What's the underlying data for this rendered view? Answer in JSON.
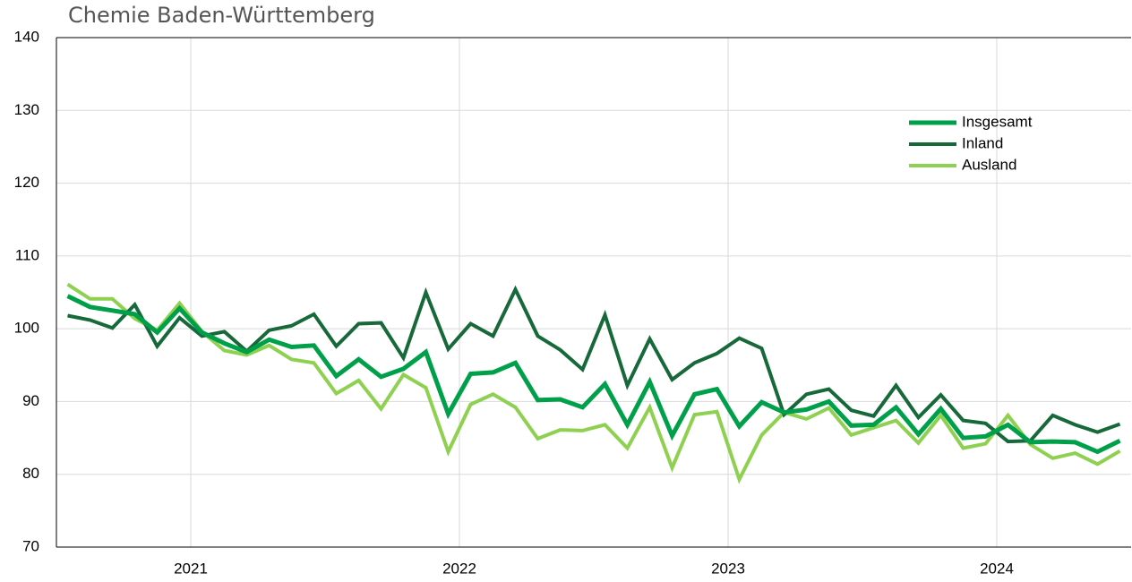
{
  "chart_data": {
    "type": "line",
    "title": "Chemie Baden-Württemberg",
    "categories": [
      null,
      null,
      null,
      null,
      null,
      null,
      "2021",
      null,
      null,
      null,
      null,
      null,
      null,
      null,
      null,
      null,
      null,
      null,
      "2022",
      null,
      null,
      null,
      null,
      null,
      null,
      null,
      null,
      null,
      null,
      null,
      "2023",
      null,
      null,
      null,
      null,
      null,
      null,
      null,
      null,
      null,
      null,
      null,
      "2024",
      null,
      null,
      null,
      null,
      null
    ],
    "series": [
      {
        "name": "Insgesamt",
        "color": "#00a04a",
        "values": [
          104.5,
          103,
          102.5,
          102,
          99.5,
          102.8,
          99.5,
          98,
          96.8,
          98.5,
          97.5,
          97.7,
          93.5,
          95.8,
          93.4,
          94.5,
          96.8,
          88.3,
          93.8,
          94,
          95.3,
          90.2,
          90.3,
          89.2,
          92.4,
          86.8,
          92.7,
          85.3,
          91,
          91.7,
          86.6,
          89.9,
          88.5,
          88.9,
          90,
          86.7,
          86.8,
          89.2,
          85.5,
          89,
          85,
          85.2,
          86.8,
          84.4,
          84.5,
          84.4,
          83.1,
          84.6
        ]
      },
      {
        "name": "Inland",
        "color": "#17693a",
        "values": [
          101.8,
          101.2,
          100.1,
          103.3,
          97.6,
          101.5,
          99,
          99.6,
          96.9,
          99.8,
          100.4,
          102,
          97.6,
          100.7,
          100.8,
          96,
          105,
          97.2,
          100.7,
          99,
          105.4,
          99,
          97.1,
          94.4,
          101.9,
          92.2,
          98.6,
          93,
          95.3,
          96.6,
          98.7,
          97.3,
          88.2,
          91,
          91.7,
          88.8,
          88,
          92.2,
          87.8,
          90.9,
          87.4,
          87,
          84.5,
          84.6,
          88.1,
          86.8,
          85.8,
          86.9
        ]
      },
      {
        "name": "Ausland",
        "color": "#8ed150",
        "values": [
          106.1,
          104.1,
          104.1,
          101.4,
          99.8,
          103.5,
          99.6,
          97,
          96.4,
          97.7,
          95.8,
          95.3,
          91.1,
          92.9,
          89,
          93.7,
          91.9,
          83.1,
          89.6,
          91,
          89.2,
          84.9,
          86.1,
          86,
          86.8,
          83.6,
          89.2,
          80.9,
          88.2,
          88.6,
          79.3,
          85.4,
          88.5,
          87.6,
          89.1,
          85.4,
          86.4,
          87.4,
          84.3,
          88.1,
          83.6,
          84.2,
          88.1,
          84.1,
          82.2,
          82.9,
          81.4,
          83.2
        ]
      }
    ],
    "ylim": [
      70,
      140
    ],
    "yticks": [
      70,
      80,
      90,
      100,
      110,
      120,
      130,
      140
    ],
    "grid": true,
    "legend": "upper right"
  }
}
